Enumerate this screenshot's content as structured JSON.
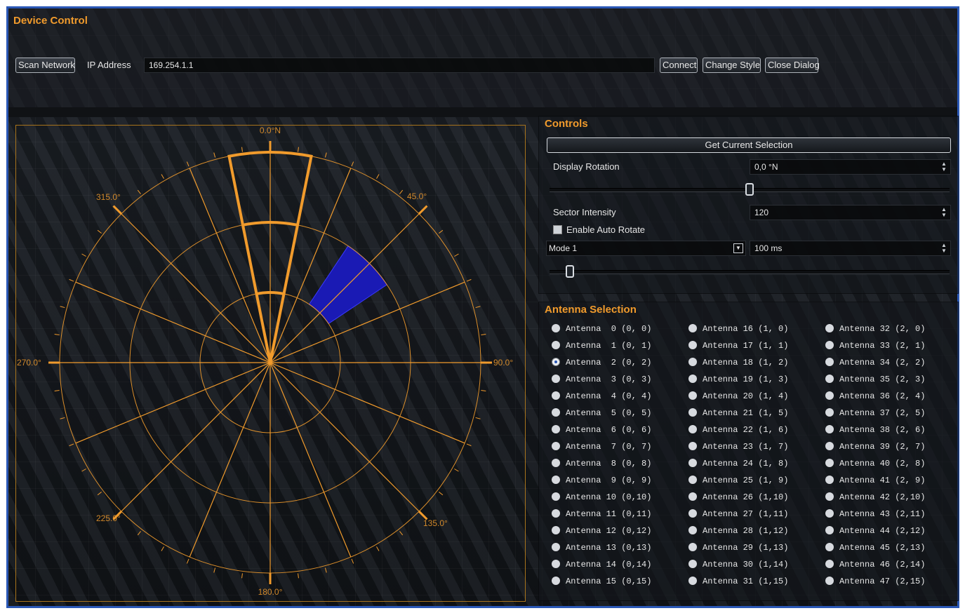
{
  "title": "Device Control",
  "toolbar": {
    "scan_label": "Scan Network",
    "ip_label": "IP Address",
    "ip_value": "169.254.1.1",
    "connect_label": "Connect",
    "change_style_label": "Change Style",
    "close_label": "Close Dialog"
  },
  "radar": {
    "labels": [
      "0.0°N",
      "45.0°",
      "90.0°",
      "135.0°",
      "180.0°",
      "225.0°",
      "270.0°",
      "315.0°"
    ],
    "highlight_color": "#1a1ab4",
    "accent_color": "#f19b2c"
  },
  "controls": {
    "title": "Controls",
    "get_selection_label": "Get Current Selection",
    "display_rotation_label": "Display Rotation",
    "display_rotation_value": "0,0 °N",
    "display_rotation_slider": 0.5,
    "sector_intensity_label": "Sector Intensity",
    "sector_intensity_value": "120",
    "auto_rotate_label": "Enable Auto Rotate",
    "auto_rotate_checked": false,
    "mode_value": "Mode 1",
    "interval_value": "100 ms",
    "interval_slider": 0.05
  },
  "antenna": {
    "title": "Antenna Selection",
    "selected": 2,
    "items": [
      "Antenna  0 (0, 0)",
      "Antenna  1 (0, 1)",
      "Antenna  2 (0, 2)",
      "Antenna  3 (0, 3)",
      "Antenna  4 (0, 4)",
      "Antenna  5 (0, 5)",
      "Antenna  6 (0, 6)",
      "Antenna  7 (0, 7)",
      "Antenna  8 (0, 8)",
      "Antenna  9 (0, 9)",
      "Antenna 10 (0,10)",
      "Antenna 11 (0,11)",
      "Antenna 12 (0,12)",
      "Antenna 13 (0,13)",
      "Antenna 14 (0,14)",
      "Antenna 15 (0,15)",
      "Antenna 16 (1, 0)",
      "Antenna 17 (1, 1)",
      "Antenna 18 (1, 2)",
      "Antenna 19 (1, 3)",
      "Antenna 20 (1, 4)",
      "Antenna 21 (1, 5)",
      "Antenna 22 (1, 6)",
      "Antenna 23 (1, 7)",
      "Antenna 24 (1, 8)",
      "Antenna 25 (1, 9)",
      "Antenna 26 (1,10)",
      "Antenna 27 (1,11)",
      "Antenna 28 (1,12)",
      "Antenna 29 (1,13)",
      "Antenna 30 (1,14)",
      "Antenna 31 (1,15)",
      "Antenna 32 (2, 0)",
      "Antenna 33 (2, 1)",
      "Antenna 34 (2, 2)",
      "Antenna 35 (2, 3)",
      "Antenna 36 (2, 4)",
      "Antenna 37 (2, 5)",
      "Antenna 38 (2, 6)",
      "Antenna 39 (2, 7)",
      "Antenna 40 (2, 8)",
      "Antenna 41 (2, 9)",
      "Antenna 42 (2,10)",
      "Antenna 43 (2,11)",
      "Antenna 44 (2,12)",
      "Antenna 45 (2,13)",
      "Antenna 46 (2,14)",
      "Antenna 47 (2,15)"
    ]
  }
}
